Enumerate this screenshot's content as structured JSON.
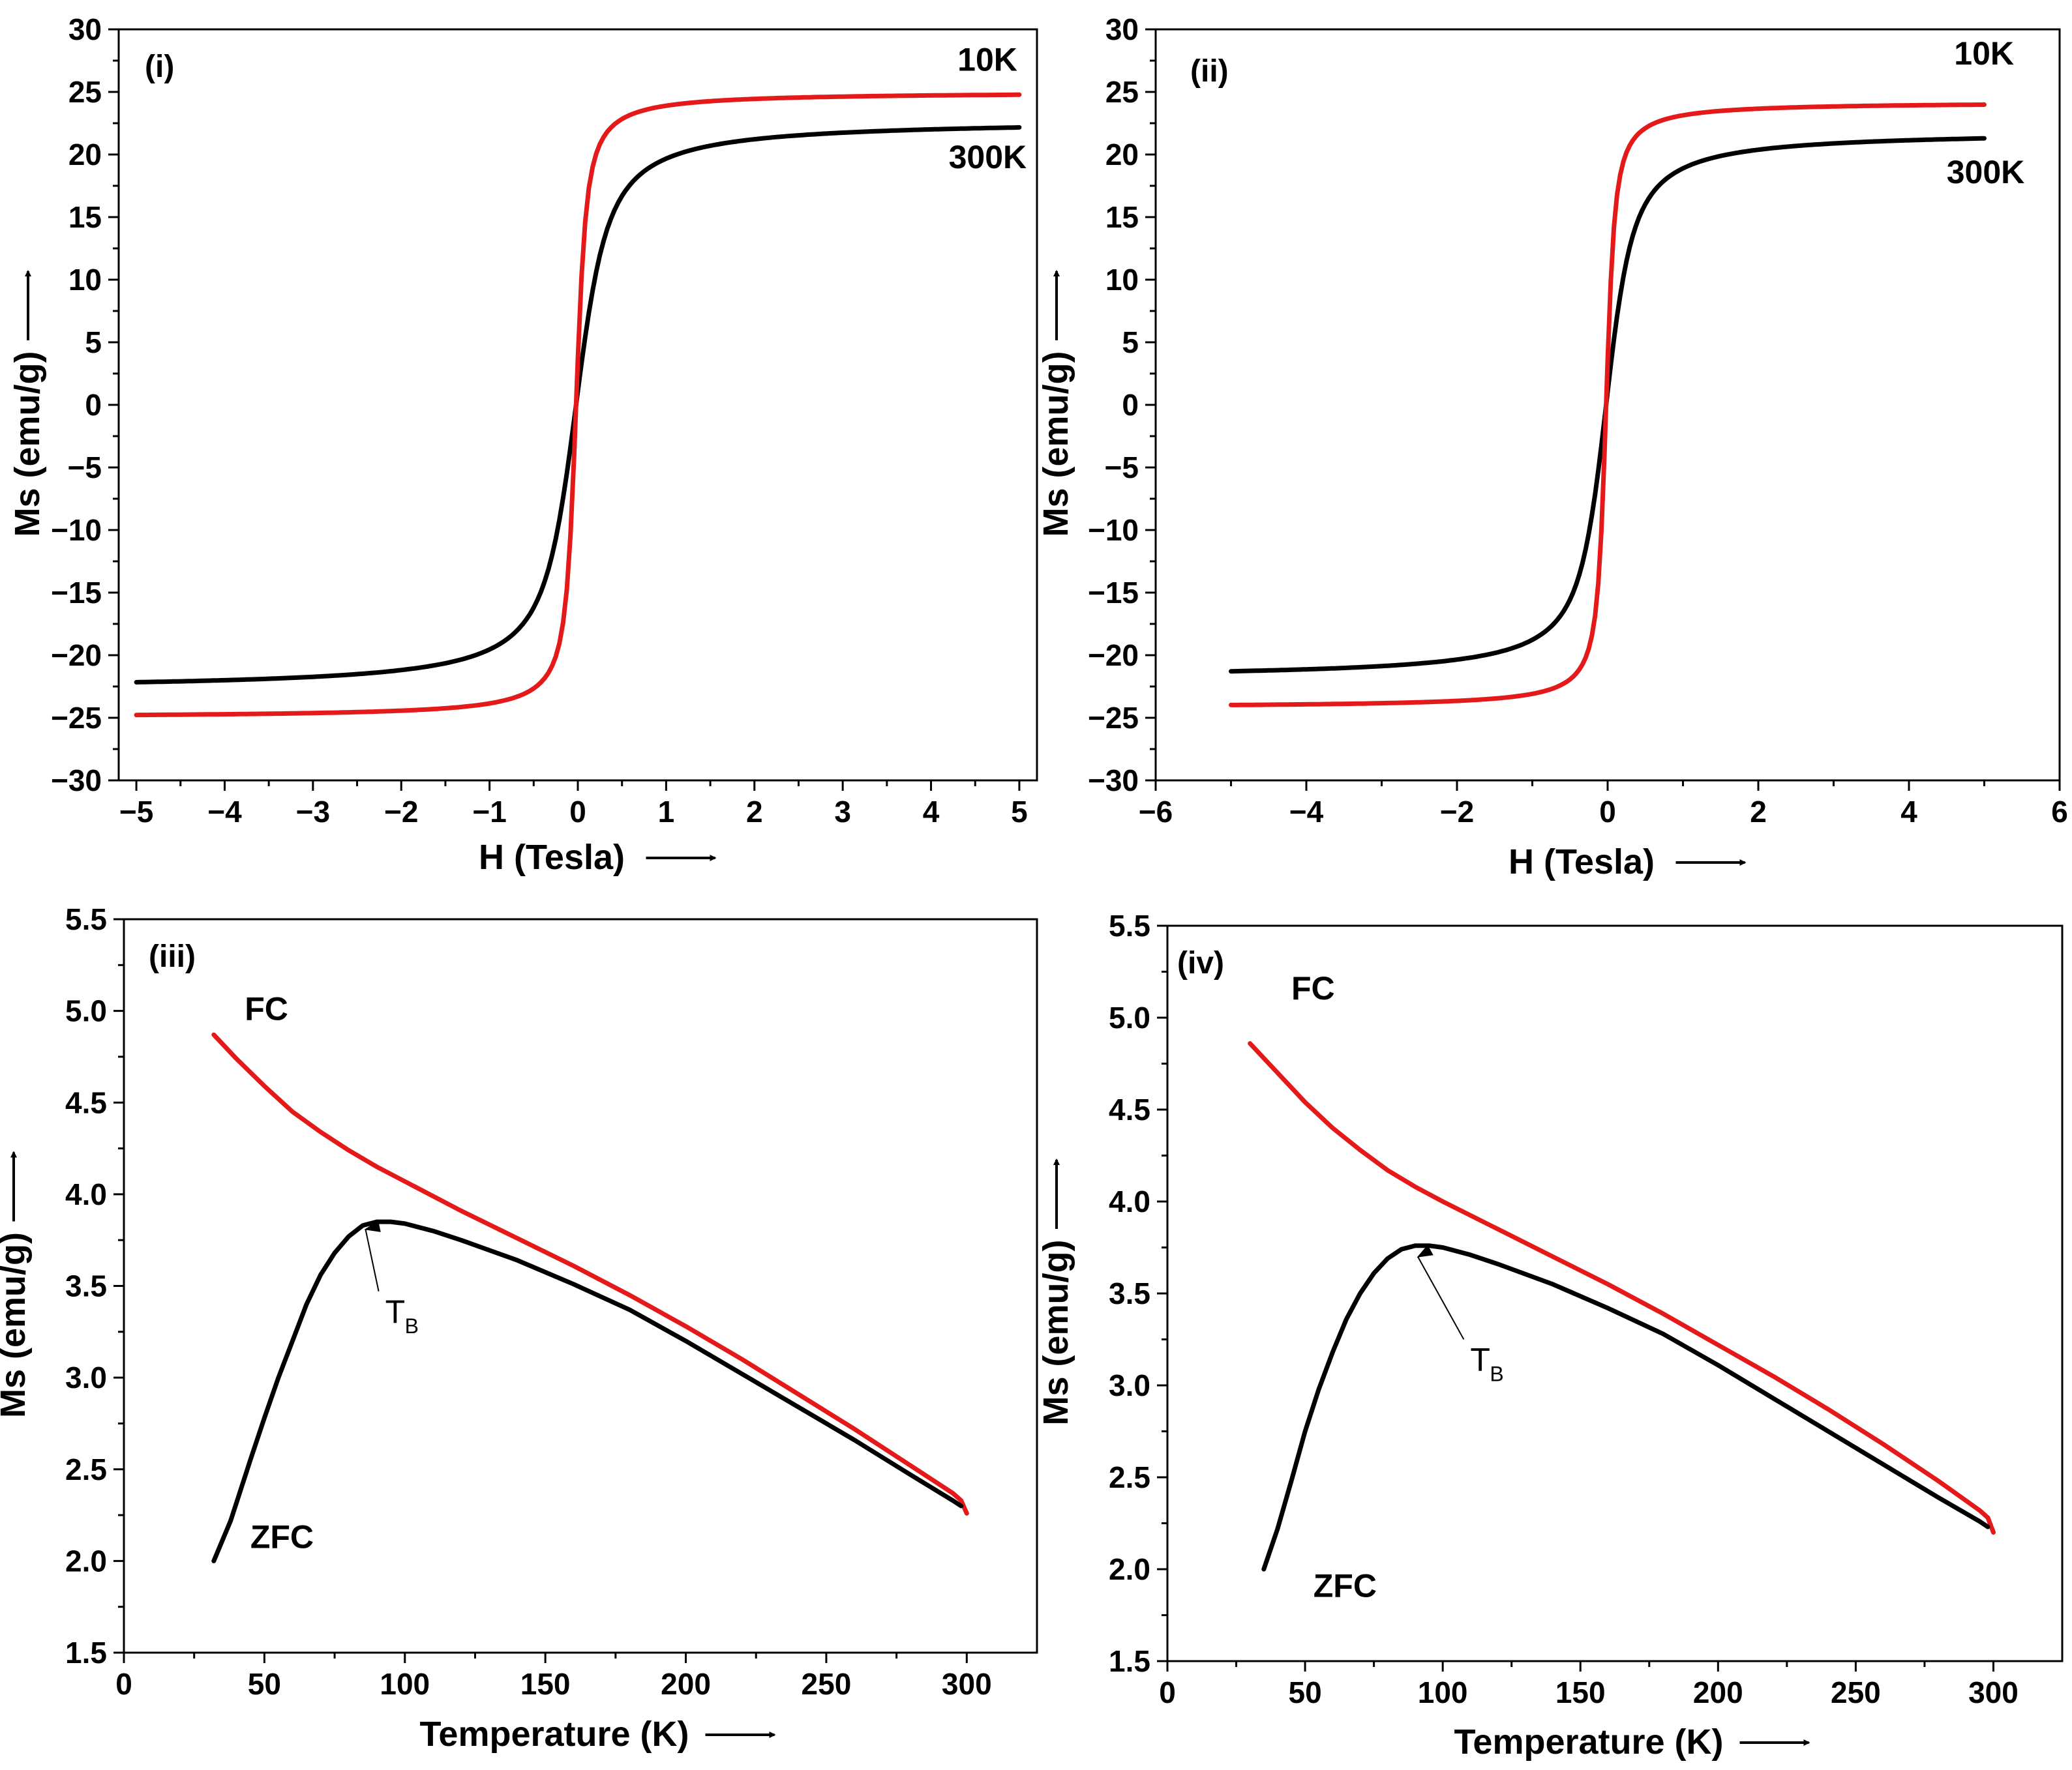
{
  "chart_data": [
    {
      "id": "i",
      "type": "line",
      "panel_label": "(i)",
      "xlabel": "H (Tesla)",
      "ylabel": "Ms (emu/g)",
      "xlim": [
        -5.2,
        5.2
      ],
      "ylim": [
        -30,
        30
      ],
      "xticks": [
        -5,
        -4,
        -3,
        -2,
        -1,
        0,
        1,
        2,
        3,
        4,
        5
      ],
      "yticks": [
        30,
        25,
        20,
        15,
        10,
        5,
        0,
        -5,
        -10,
        -15,
        -20,
        -25,
        -30
      ],
      "series": [
        {
          "name": "300K",
          "color": "#000000",
          "model": "hysteresis",
          "params": {
            "Ms": 22.8,
            "a": 0.14,
            "Hc": 0.02
          },
          "x_range": [
            -5,
            5
          ],
          "label": "300K"
        },
        {
          "name": "10K",
          "color": "#e41a1a",
          "model": "hysteresis",
          "params": {
            "Ms": 25.0,
            "a": 0.045,
            "Hc": 0.02
          },
          "x_range": [
            -5,
            5
          ],
          "label": "10K"
        }
      ],
      "annotations": [
        {
          "text": "10K",
          "x": 4.3,
          "y": 26.7
        },
        {
          "text": "300K",
          "x": 4.2,
          "y": 18.9
        }
      ]
    },
    {
      "id": "ii",
      "type": "line",
      "panel_label": "(ii)",
      "xlabel": "H (Tesla)",
      "ylabel": "Ms (emu/g)",
      "xlim": [
        -6,
        6
      ],
      "ylim": [
        -30,
        30
      ],
      "xticks": [
        -6,
        -4,
        -2,
        0,
        2,
        4,
        6
      ],
      "yticks": [
        30,
        25,
        20,
        15,
        10,
        5,
        0,
        -5,
        -10,
        -15,
        -20,
        -25,
        -30
      ],
      "series": [
        {
          "name": "300K",
          "color": "#000000",
          "model": "hysteresis",
          "params": {
            "Ms": 21.9,
            "a": 0.14,
            "Hc": 0.02
          },
          "x_range": [
            -5,
            5
          ],
          "label": "300K"
        },
        {
          "name": "10K",
          "color": "#e41a1a",
          "model": "hysteresis",
          "params": {
            "Ms": 24.2,
            "a": 0.045,
            "Hc": 0.02
          },
          "x_range": [
            -5,
            5
          ],
          "label": "10K"
        }
      ],
      "annotations": [
        {
          "text": "10K",
          "x": 4.6,
          "y": 27.2
        },
        {
          "text": "300K",
          "x": 4.5,
          "y": 17.7
        }
      ]
    },
    {
      "id": "iii",
      "type": "line",
      "panel_label": "(iii)",
      "xlabel": "Temperature (K)",
      "ylabel": "Ms (emu/g)",
      "xlim": [
        0,
        325
      ],
      "ylim": [
        1.5,
        5.5
      ],
      "xticks": [
        0,
        50,
        100,
        150,
        200,
        250,
        300
      ],
      "yticks": [
        5.5,
        5.0,
        4.5,
        4.0,
        3.5,
        3.0,
        2.5,
        2.0,
        1.5
      ],
      "series": [
        {
          "name": "FC",
          "color": "#e41a1a",
          "label": "FC",
          "x": [
            32,
            40,
            50,
            60,
            70,
            80,
            90,
            100,
            120,
            140,
            160,
            180,
            200,
            220,
            240,
            260,
            280,
            295,
            298,
            300
          ],
          "y": [
            4.87,
            4.74,
            4.59,
            4.45,
            4.34,
            4.24,
            4.15,
            4.07,
            3.91,
            3.76,
            3.61,
            3.45,
            3.28,
            3.1,
            2.91,
            2.72,
            2.52,
            2.37,
            2.33,
            2.26
          ]
        },
        {
          "name": "ZFC",
          "color": "#000000",
          "label": "ZFC",
          "x": [
            32,
            38,
            45,
            50,
            55,
            60,
            65,
            70,
            75,
            80,
            85,
            90,
            95,
            100,
            110,
            120,
            140,
            160,
            180,
            200,
            220,
            240,
            260,
            280,
            295,
            298
          ],
          "y": [
            2.0,
            2.22,
            2.55,
            2.78,
            3.0,
            3.2,
            3.4,
            3.56,
            3.68,
            3.77,
            3.83,
            3.85,
            3.85,
            3.84,
            3.8,
            3.75,
            3.64,
            3.51,
            3.37,
            3.2,
            3.02,
            2.84,
            2.66,
            2.47,
            2.33,
            2.3
          ]
        }
      ],
      "annotations": [
        {
          "text": "FC",
          "x": 43,
          "y": 4.95
        },
        {
          "text": "ZFC",
          "x": 45,
          "y": 2.07
        },
        {
          "text": "T",
          "sub": "B",
          "x": 93,
          "y": 3.3,
          "arrow_to": [
            86,
            3.83
          ]
        }
      ]
    },
    {
      "id": "iv",
      "type": "line",
      "panel_label": "(iv)",
      "xlabel": "Temperature (K)",
      "ylabel": "Ms (emu/g)",
      "xlim": [
        0,
        325
      ],
      "ylim": [
        1.5,
        5.5
      ],
      "xticks": [
        0,
        50,
        100,
        150,
        200,
        250,
        300
      ],
      "yticks": [
        5.5,
        5.0,
        4.5,
        4.0,
        3.5,
        3.0,
        2.5,
        2.0,
        1.5
      ],
      "series": [
        {
          "name": "FC",
          "color": "#e41a1a",
          "label": "FC",
          "x": [
            30,
            40,
            50,
            60,
            70,
            80,
            90,
            100,
            120,
            140,
            160,
            180,
            200,
            220,
            240,
            260,
            280,
            295,
            298,
            300
          ],
          "y": [
            4.86,
            4.7,
            4.54,
            4.4,
            4.28,
            4.17,
            4.08,
            4.0,
            3.85,
            3.7,
            3.55,
            3.39,
            3.22,
            3.05,
            2.87,
            2.68,
            2.48,
            2.32,
            2.28,
            2.2
          ]
        },
        {
          "name": "ZFC",
          "color": "#000000",
          "label": "ZFC",
          "x": [
            35,
            40,
            45,
            50,
            55,
            60,
            65,
            70,
            75,
            80,
            85,
            90,
            95,
            100,
            110,
            120,
            140,
            160,
            180,
            200,
            220,
            240,
            260,
            280,
            295,
            298
          ],
          "y": [
            2.0,
            2.22,
            2.48,
            2.75,
            2.98,
            3.18,
            3.36,
            3.5,
            3.61,
            3.69,
            3.74,
            3.76,
            3.76,
            3.75,
            3.71,
            3.66,
            3.55,
            3.42,
            3.28,
            3.11,
            2.93,
            2.75,
            2.57,
            2.39,
            2.26,
            2.23
          ]
        }
      ],
      "annotations": [
        {
          "text": "FC",
          "x": 45,
          "y": 5.1
        },
        {
          "text": "ZFC",
          "x": 53,
          "y": 1.85
        },
        {
          "text": "T",
          "sub": "B",
          "x": 110,
          "y": 3.08,
          "arrow_to": [
            91,
            3.72
          ]
        }
      ]
    }
  ]
}
